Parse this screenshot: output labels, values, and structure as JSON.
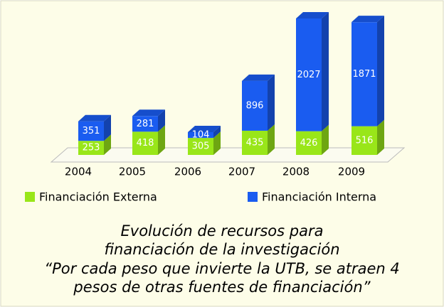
{
  "chart_data": {
    "type": "bar",
    "stacked": true,
    "categories": [
      "2004",
      "2005",
      "2006",
      "2007",
      "2008",
      "2009"
    ],
    "series": [
      {
        "name": "Financiación Externa",
        "color": "#99e619",
        "values": [
          253,
          418,
          305,
          435,
          426,
          516
        ]
      },
      {
        "name": "Financiación Interna",
        "color": "#1a5cf0",
        "values": [
          351,
          281,
          104,
          896,
          2027,
          1871
        ]
      }
    ],
    "title": [
      "Evolución de recursos para",
      "financiación de la investigación"
    ],
    "subtitle": [
      "“Por cada peso que invierte la UTB, se atraen 4",
      "pesos de otras fuentes de financiación”"
    ]
  }
}
